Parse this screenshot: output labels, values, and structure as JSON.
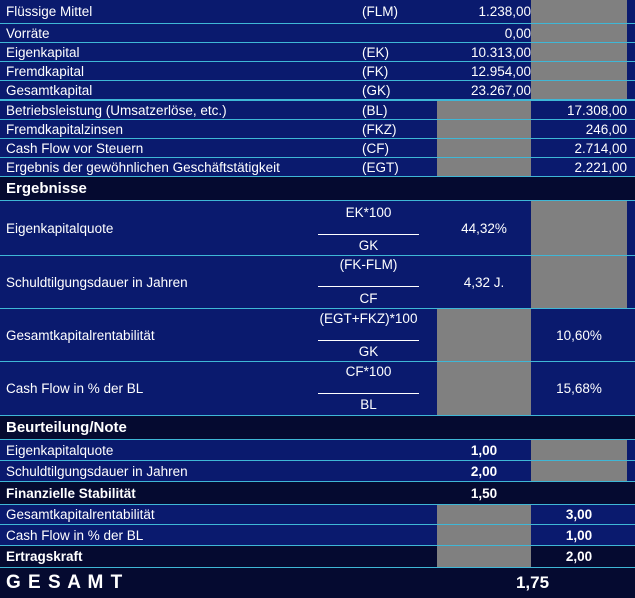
{
  "top_rows": [
    {
      "label": "Flüssige Mittel",
      "abbr": "(FLM)",
      "value": "1.238,00"
    },
    {
      "label": "Vorräte",
      "abbr": "",
      "value": "0,00"
    },
    {
      "label": "Eigenkapital",
      "abbr": "(EK)",
      "value": "10.313,00"
    },
    {
      "label": "Fremdkapital",
      "abbr": "(FK)",
      "value": "12.954,00"
    },
    {
      "label": "Gesamtkapital",
      "abbr": "(GK)",
      "value": "23.267,00"
    }
  ],
  "mid_rows": [
    {
      "label": "Betriebsleistung (Umsatzerlöse, etc.)",
      "abbr": "(BL)",
      "value": "17.308,00"
    },
    {
      "label": "Fremdkapitalzinsen",
      "abbr": "(FKZ)",
      "value": "246,00"
    },
    {
      "label": "Cash Flow vor Steuern",
      "abbr": "(CF)",
      "value": "2.714,00"
    },
    {
      "label": "Ergebnis der gewöhnlichen Geschäftstätigkeit",
      "abbr": "(EGT)",
      "value": "2.221,00"
    }
  ],
  "ergebnisse": {
    "heading": "Ergebnisse",
    "rows": [
      {
        "label": "Eigenkapitalquote",
        "numerator": "EK*100",
        "denominator": "GK",
        "value": "44,32%"
      },
      {
        "label": "Schuldtilgungsdauer in Jahren",
        "numerator": "(FK-FLM)",
        "denominator": "CF",
        "value": "4,32 J."
      },
      {
        "label": "Gesamtkapitalrentabilität",
        "numerator": "(EGT+FKZ)*100",
        "denominator": "GK",
        "value": "10,60%"
      },
      {
        "label": "Cash Flow in % der BL",
        "numerator": "CF*100",
        "denominator": "BL",
        "value": "15,68%"
      }
    ]
  },
  "beurteilung": {
    "heading": "Beurteilung/Note",
    "stability_rows": [
      {
        "label": "Eigenkapitalquote",
        "value": "1,00"
      },
      {
        "label": "Schuldtilgungsdauer in Jahren",
        "value": "2,00"
      }
    ],
    "stability_total": {
      "label": "Finanzielle Stabilität",
      "value": "1,50"
    },
    "earnings_rows": [
      {
        "label": "Gesamtkapitalrentabilität",
        "value": "3,00"
      },
      {
        "label": "Cash Flow in % der BL",
        "value": "1,00"
      }
    ],
    "earnings_total": {
      "label": "Ertragskraft",
      "value": "2,00"
    }
  },
  "gesamt": {
    "label": "G E S A M T",
    "value": "1,75"
  },
  "colors": {
    "background": "#0a1a6e",
    "gray": "#808080",
    "dark": "#050a30",
    "grid": "#3fb7d6"
  }
}
